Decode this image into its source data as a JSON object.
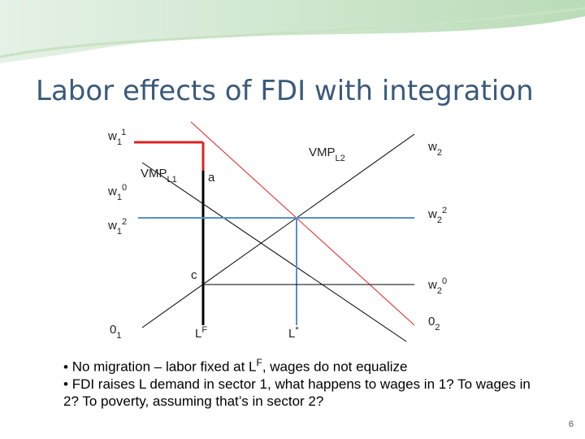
{
  "title": "Labor effects of FDI with integration",
  "diagram": {
    "left_labels": [
      {
        "base": "w",
        "sub": "1",
        "sup": "1"
      },
      {
        "base": "w",
        "sub": "1",
        "sup": "0"
      },
      {
        "base": "w",
        "sub": "1",
        "sup": "2"
      },
      {
        "base": "0",
        "sub": "1"
      }
    ],
    "right_labels": [
      {
        "base": "w",
        "sub": "2"
      },
      {
        "base": "w",
        "sub": "2",
        "sup": "2"
      },
      {
        "base": "w",
        "sub": "2",
        "sup": "0"
      },
      {
        "base": "0",
        "sub": "2"
      }
    ],
    "curve_labels": [
      {
        "base": "VMP",
        "sub": "L1"
      },
      {
        "base": "VMP",
        "sub": "L2"
      }
    ],
    "points": {
      "a": "a",
      "c": "c"
    },
    "bottom_labels": [
      {
        "base": "L",
        "sup": "F"
      },
      {
        "base": "L",
        "sup": "*"
      }
    ]
  },
  "bullets": [
    [
      {
        "text": "No migration – labor fixed at L"
      },
      {
        "sup": "F"
      },
      {
        "text": ", wages do not equalize"
      }
    ],
    [
      {
        "text": "FDI raises L demand in sector 1, what happens to wages in 1? To wages in 2?  To poverty, assuming that’s in sector 2?"
      }
    ]
  ],
  "page_number": "6"
}
